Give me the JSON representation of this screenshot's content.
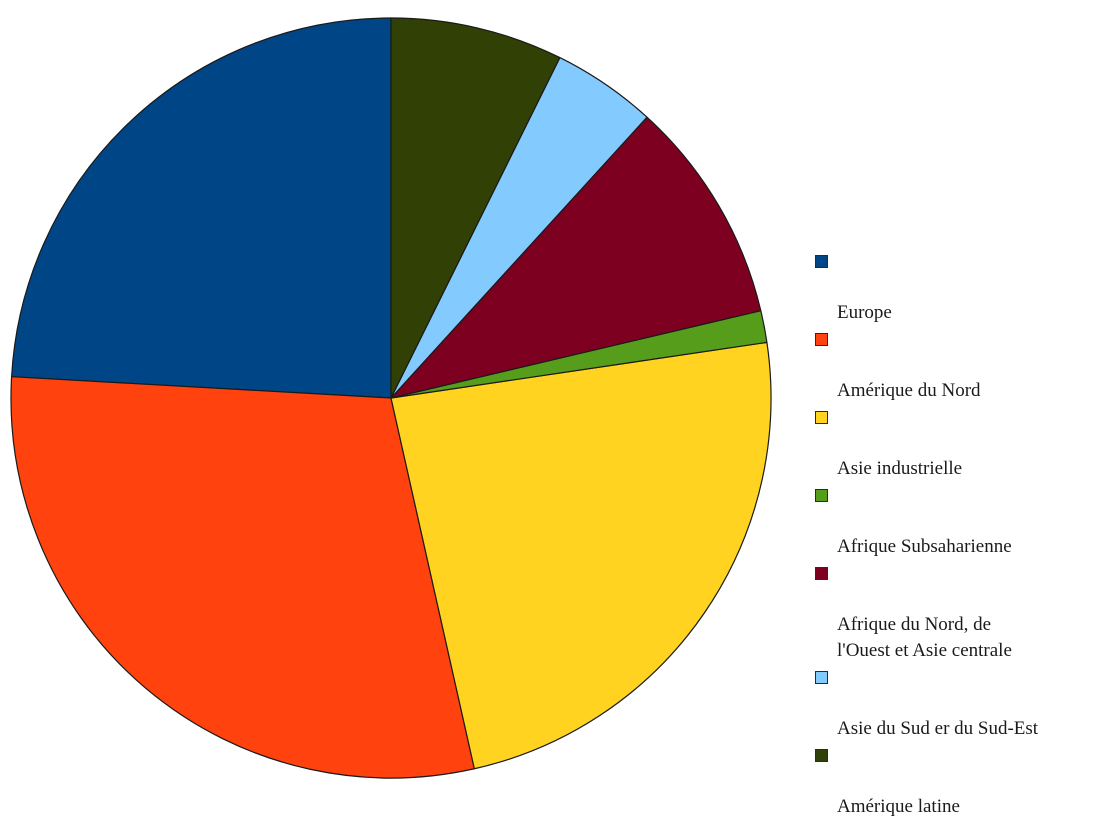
{
  "chart_data": {
    "type": "pie",
    "categories": [
      "Europe",
      "Amérique du Nord",
      "Asie industrielle",
      "Afrique Subsaharienne",
      "Afrique du Nord, de\nl'Ouest et Asie centrale",
      "Asie du Sud er du Sud-Est",
      "Amérique latine"
    ],
    "values": [
      25.0,
      30.5,
      24.7,
      1.4,
      9.9,
      4.6,
      7.6
    ],
    "unit": "%",
    "colors": [
      "#004586",
      "#ff420e",
      "#ffd320",
      "#579d1c",
      "#7e0021",
      "#83caff",
      "#314004"
    ],
    "start_angle_deg": 0,
    "direction": "counterclockwise",
    "legend_position": "right",
    "title": ""
  }
}
